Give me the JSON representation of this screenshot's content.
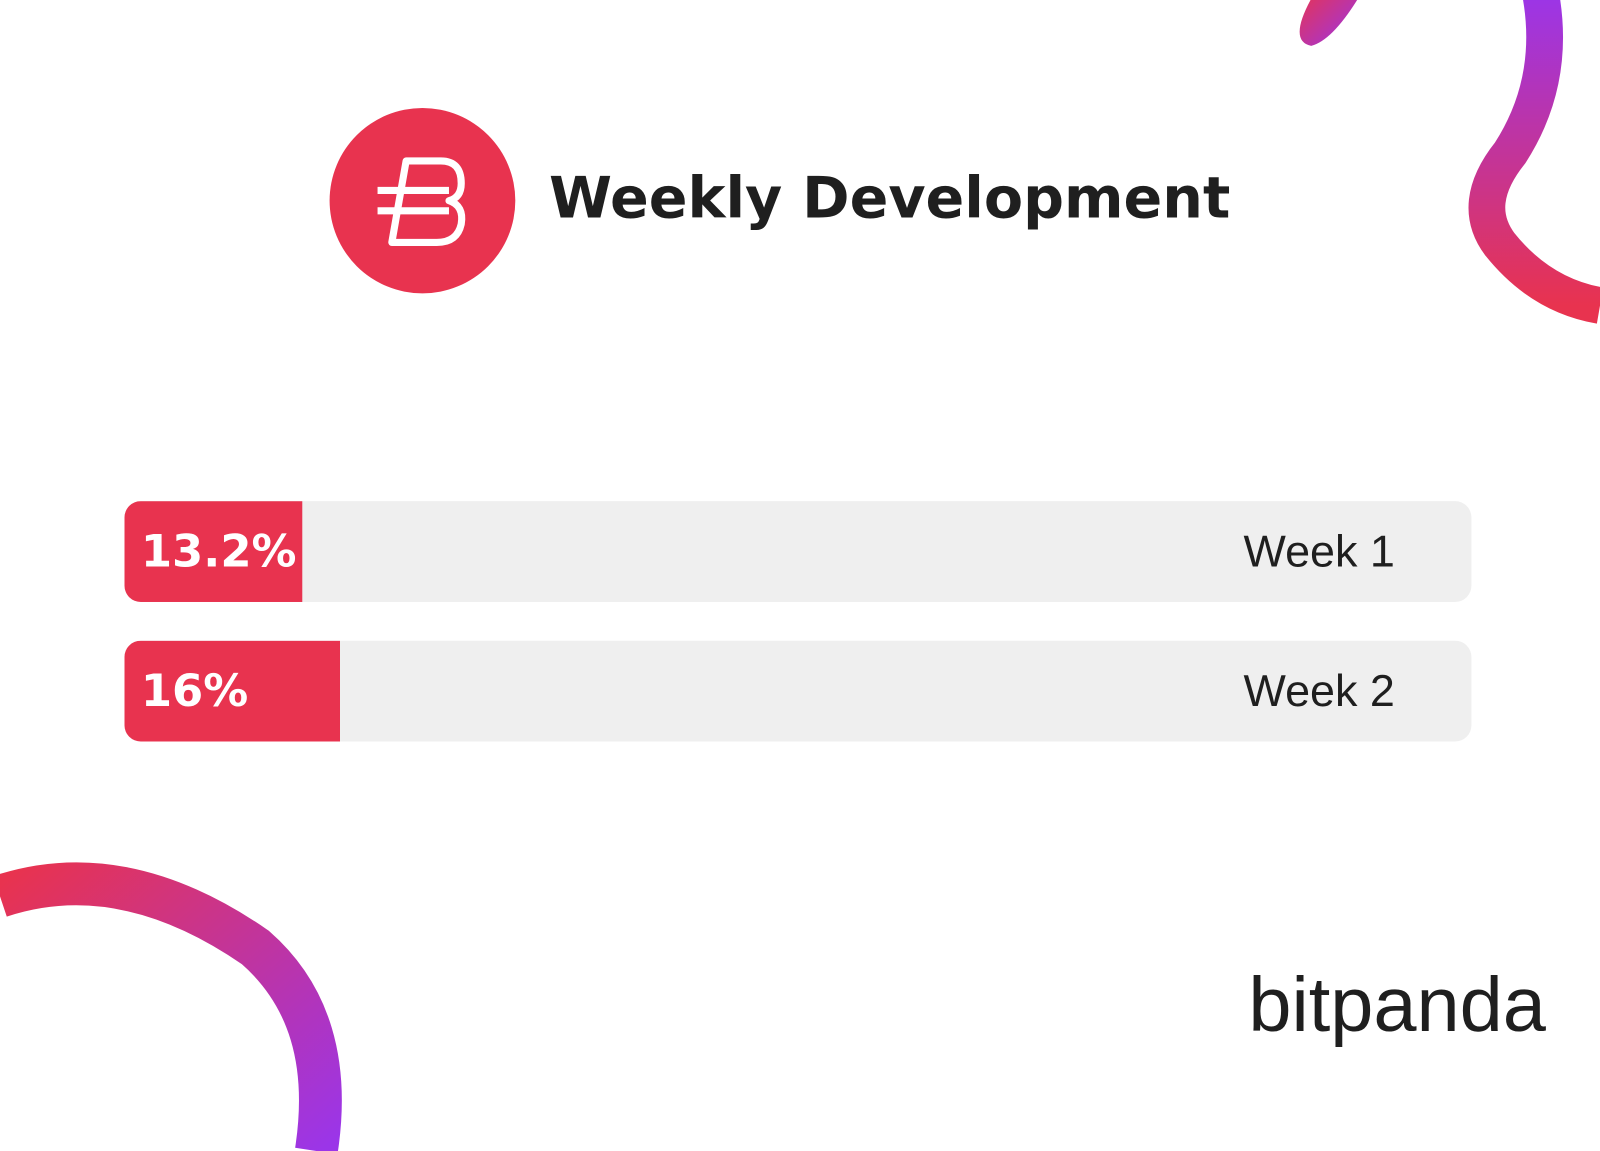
{
  "chart_data": {
    "type": "bar",
    "orientation": "horizontal",
    "title": "Weekly Development",
    "categories": [
      "Week 1",
      "Week 2"
    ],
    "values": [
      13.2,
      16
    ],
    "value_labels": [
      "13.2%",
      "16%"
    ],
    "color": "#e8334f",
    "xlim": [
      0,
      100
    ]
  },
  "brand": "bitpanda"
}
